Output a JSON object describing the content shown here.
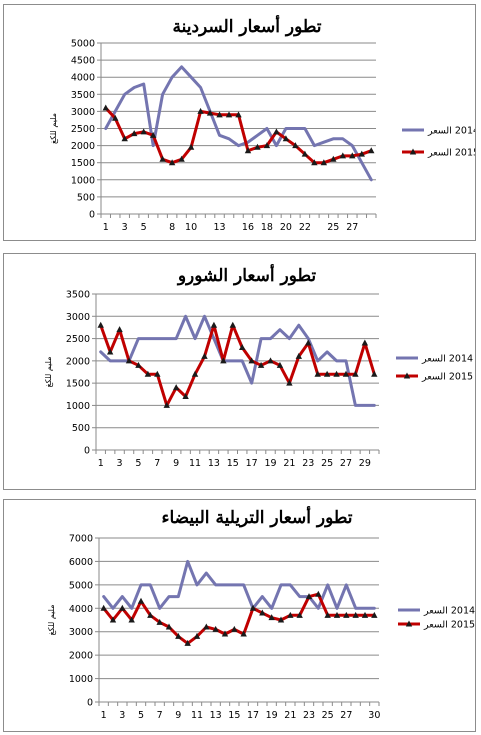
{
  "chart_data": [
    {
      "type": "line",
      "title": "تطور أسعار السردينة",
      "ylabel": "مليم للكغ",
      "ylim": [
        0,
        5000
      ],
      "ystep": 500,
      "x": [
        1,
        2,
        3,
        4,
        5,
        6,
        7,
        8,
        9,
        10,
        11,
        12,
        13,
        14,
        15,
        16,
        17,
        18,
        19,
        20,
        21,
        22,
        23,
        24,
        25,
        26,
        27,
        28,
        29
      ],
      "xticks": [
        1,
        3,
        5,
        8,
        10,
        13,
        16,
        18,
        20,
        22,
        25,
        27
      ],
      "series": [
        {
          "name": "2014 السعر",
          "color": "#7475b0",
          "marker": "none",
          "values": [
            2500,
            3000,
            3500,
            3700,
            3800,
            2000,
            3500,
            4000,
            4300,
            4000,
            3700,
            3000,
            2300,
            2200,
            2000,
            2100,
            2300,
            2500,
            2000,
            2500,
            2500,
            2500,
            2000,
            2100,
            2200,
            2200,
            2000,
            1500,
            1000
          ]
        },
        {
          "name": "2015 السعر",
          "color": "#c00000",
          "marker": "triangle",
          "values": [
            3100,
            2800,
            2200,
            2350,
            2400,
            2300,
            1600,
            1500,
            1600,
            1950,
            3000,
            2950,
            2900,
            2900,
            2900,
            1850,
            1950,
            2000,
            2400,
            2200,
            2000,
            1750,
            1500,
            1500,
            1600,
            1700,
            1700,
            1750,
            1850
          ]
        }
      ],
      "legend_position": "right"
    },
    {
      "type": "line",
      "title": "تطور أسعار الشورو",
      "ylabel": "مليم للكغ",
      "ylim": [
        0,
        3500
      ],
      "ystep": 500,
      "x": [
        1,
        2,
        3,
        4,
        5,
        6,
        7,
        8,
        9,
        10,
        11,
        12,
        13,
        14,
        15,
        16,
        17,
        18,
        19,
        20,
        21,
        22,
        23,
        24,
        25,
        26,
        27,
        28,
        29,
        30
      ],
      "xticks": [
        1,
        3,
        5,
        7,
        9,
        11,
        13,
        15,
        17,
        19,
        21,
        23,
        25,
        27,
        29
      ],
      "series": [
        {
          "name": "2014 السعر",
          "color": "#7475b0",
          "marker": "none",
          "values": [
            2200,
            2000,
            2000,
            2000,
            2500,
            2500,
            2500,
            2500,
            2500,
            3000,
            2500,
            3000,
            2500,
            2000,
            2000,
            2000,
            1500,
            2500,
            2500,
            2700,
            2500,
            2800,
            2500,
            2000,
            2200,
            2000,
            2000,
            1000,
            1000,
            1000
          ]
        },
        {
          "name": "2015 السعر",
          "color": "#c00000",
          "marker": "triangle",
          "values": [
            2800,
            2200,
            2700,
            2000,
            1900,
            1700,
            1700,
            1000,
            1400,
            1200,
            1700,
            2100,
            2800,
            2000,
            2800,
            2300,
            2000,
            1900,
            2000,
            1900,
            1500,
            2100,
            2400,
            1700,
            1700,
            1700,
            1700,
            1700,
            2400,
            1700
          ]
        }
      ],
      "legend_position": "right"
    },
    {
      "type": "line",
      "title": "تطور أسعار التريلية البيضاء",
      "ylabel": "مليم للكغ",
      "ylim": [
        0,
        7000
      ],
      "ystep": 1000,
      "x": [
        1,
        2,
        3,
        4,
        5,
        6,
        7,
        8,
        9,
        10,
        11,
        12,
        13,
        14,
        15,
        16,
        17,
        18,
        19,
        20,
        21,
        22,
        23,
        24,
        25,
        26,
        27,
        28,
        29,
        30
      ],
      "xticks": [
        1,
        3,
        5,
        7,
        9,
        11,
        13,
        15,
        17,
        19,
        21,
        23,
        25,
        27,
        30
      ],
      "series": [
        {
          "name": "2014 السعر",
          "color": "#7475b0",
          "marker": "none",
          "values": [
            4500,
            4000,
            4500,
            4000,
            5000,
            5000,
            4000,
            4500,
            4500,
            6000,
            5000,
            5500,
            5000,
            5000,
            5000,
            5000,
            4000,
            4500,
            4000,
            5000,
            5000,
            4500,
            4500,
            4000,
            5000,
            4000,
            5000,
            4000,
            4000,
            4000
          ]
        },
        {
          "name": "2015 السعر",
          "color": "#c00000",
          "marker": "triangle",
          "values": [
            4000,
            3500,
            4000,
            3500,
            4300,
            3700,
            3400,
            3200,
            2800,
            2500,
            2800,
            3200,
            3100,
            2900,
            3100,
            2900,
            4000,
            3800,
            3600,
            3500,
            3700,
            3700,
            4500,
            4600,
            3700,
            3700,
            3700,
            3700,
            3700,
            3700
          ]
        }
      ],
      "legend_position": "right"
    }
  ]
}
